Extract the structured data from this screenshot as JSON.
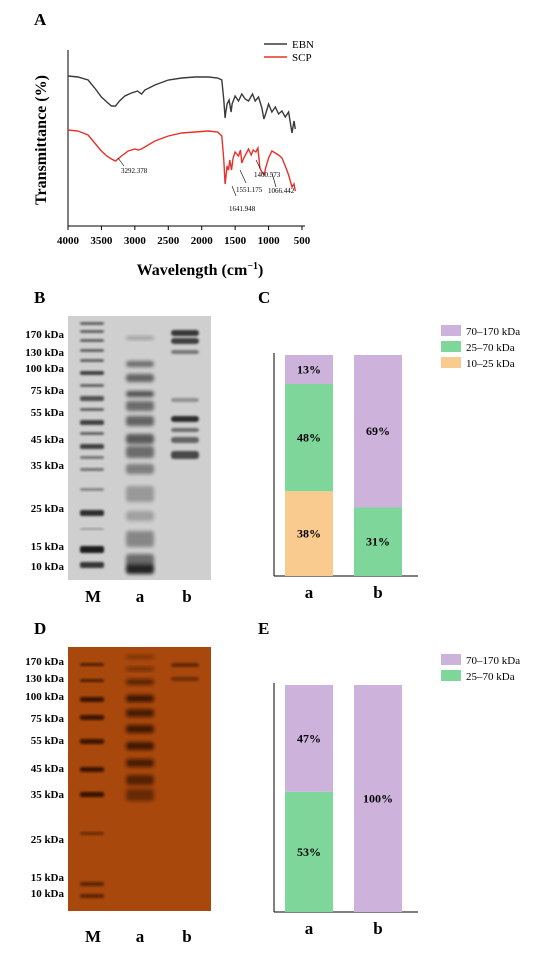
{
  "panels": {
    "A": "A",
    "B": "B",
    "C": "C",
    "D": "D",
    "E": "E"
  },
  "colors": {
    "ebn": "#3a3a3a",
    "scp": "#e8302a",
    "kda70_170": "#cdb3dc",
    "kda25_70": "#7fd69a",
    "kda10_25": "#f9cb8f",
    "gel_b_bg": "#cfcfcf",
    "gel_d_bg": "#a8480c"
  },
  "lanes": {
    "m": "M",
    "a": "a",
    "b": "b"
  },
  "markers_b": [
    "170 kDa",
    "130 kDa",
    "100 kDa",
    "75 kDa",
    "55 kDa",
    "45 kDa",
    "35 kDa",
    "25 kDa",
    "15 kDa",
    "10 kDa"
  ],
  "markers_d": [
    "170 kDa",
    "130 kDa",
    "100 kDa",
    "75 kDa",
    "55 kDa",
    "45 kDa",
    "35 kDa",
    "25 kDa",
    "15 kDa",
    "10 kDa"
  ],
  "chart_data": [
    {
      "panel": "A",
      "type": "line",
      "xlabel": "Wavelength (cm",
      "xlabel_sup": "−1",
      "xlabel_end": ")",
      "ylabel": "Transmittance (%)",
      "xlim": [
        4000,
        500
      ],
      "x_ticks": [
        "4000",
        "3500",
        "3000",
        "2500",
        "2000",
        "1500",
        "1000",
        "500"
      ],
      "legend_position": "top-right",
      "series": [
        {
          "name": "EBN"
        },
        {
          "name": "SCP"
        }
      ],
      "annotations": [
        "3292.378",
        "1641.948",
        "1551.175",
        "1400.573",
        "1066.442"
      ]
    },
    {
      "panel": "C",
      "type": "bar",
      "stacked": true,
      "categories": [
        "a",
        "b"
      ],
      "series": [
        {
          "name": "70–170 kDa",
          "values": [
            13,
            69
          ],
          "labels": [
            "13%",
            "69%"
          ]
        },
        {
          "name": "25–70 kDa",
          "values": [
            48,
            31
          ],
          "labels": [
            "48%",
            "31%"
          ]
        },
        {
          "name": "10–25 kDa",
          "values": [
            38,
            0
          ],
          "labels": [
            "38%",
            ""
          ]
        }
      ],
      "legend_position": "top-right"
    },
    {
      "panel": "E",
      "type": "bar",
      "stacked": true,
      "categories": [
        "a",
        "b"
      ],
      "series": [
        {
          "name": "70–170 kDa",
          "values": [
            47,
            100
          ],
          "labels": [
            "47%",
            "100%"
          ]
        },
        {
          "name": "25–70 kDa",
          "values": [
            53,
            0
          ],
          "labels": [
            "53%",
            ""
          ]
        }
      ],
      "legend_position": "top-right"
    }
  ]
}
